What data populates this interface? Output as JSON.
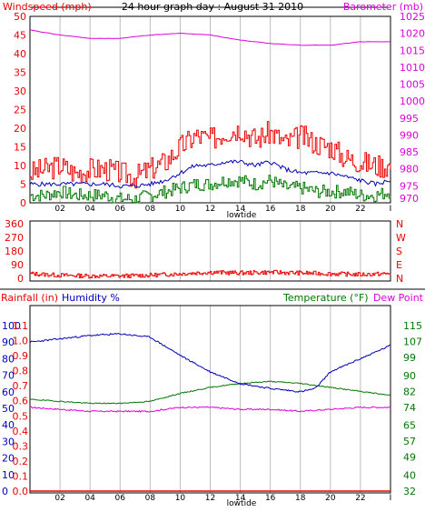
{
  "colors": {
    "wind": "#ee0000",
    "wind_avg": "#0000bb",
    "gust_low": "#007700",
    "barometer": "#dd00dd",
    "direction": "#ee0000",
    "humidity": "#0000bb",
    "temperature": "#007700",
    "dewpoint": "#dd00dd",
    "rainfall": "#ee0000",
    "grid": "#bdbdbd",
    "frame": "#000000"
  },
  "chart_data": [
    {
      "type": "line",
      "panel": "top",
      "title": "24 hour graph day : August 31 2010",
      "left_axis_label": "Windspeed (mph)",
      "right_axis_label": "Barometer (mb)",
      "left_ticks": [
        "0",
        "5",
        "10",
        "15",
        "20",
        "25",
        "30",
        "35",
        "40",
        "45",
        "50"
      ],
      "right_ticks": [
        "975",
        "980",
        "985",
        "990",
        "995",
        "1000",
        "1005",
        "1010",
        "1015",
        "1020",
        "1025"
      ],
      "right_axis_extra_tick": "970",
      "ylim_left": [
        0,
        50
      ],
      "ylim_right": [
        970,
        1025
      ],
      "x_ticks": [
        "02",
        "04",
        "06",
        "08",
        "10",
        "12",
        "14",
        "16",
        "18",
        "20",
        "22",
        "I"
      ],
      "x_label": "lowtide",
      "xlim": [
        0,
        24
      ],
      "series": [
        {
          "key": "gust",
          "x": [
            0,
            1,
            2,
            3,
            4,
            5,
            6,
            7,
            8,
            9,
            10,
            11,
            12,
            13,
            14,
            15,
            16,
            17,
            18,
            19,
            20,
            21,
            22,
            23,
            24
          ],
          "values": [
            8,
            9,
            10,
            8,
            9,
            9,
            8,
            7,
            9,
            11,
            15,
            18,
            17,
            19,
            20,
            17,
            19,
            16,
            18,
            16,
            15,
            12,
            11,
            10,
            10
          ]
        },
        {
          "key": "avg",
          "x": [
            0,
            1,
            2,
            3,
            4,
            5,
            6,
            7,
            8,
            9,
            10,
            11,
            12,
            13,
            14,
            15,
            16,
            17,
            18,
            19,
            20,
            21,
            22,
            23,
            24
          ],
          "values": [
            5,
            5,
            5,
            5,
            5,
            5,
            4.5,
            4.5,
            5,
            6,
            8,
            10,
            10,
            11,
            11,
            10,
            11,
            9,
            8,
            8,
            8,
            7,
            6,
            5,
            6
          ]
        },
        {
          "key": "low",
          "x": [
            0,
            1,
            2,
            3,
            4,
            5,
            6,
            7,
            8,
            9,
            10,
            11,
            12,
            13,
            14,
            15,
            16,
            17,
            18,
            19,
            20,
            21,
            22,
            23,
            24
          ],
          "values": [
            2,
            2,
            3,
            2,
            2,
            2,
            1,
            1,
            2,
            3,
            4,
            5,
            5,
            6,
            6,
            5,
            6,
            4,
            4,
            3,
            3,
            3,
            2,
            2,
            3
          ]
        },
        {
          "key": "barometer",
          "x": [
            0,
            2,
            4,
            6,
            8,
            10,
            12,
            14,
            16,
            18,
            20,
            22,
            24
          ],
          "values": [
            1021,
            1019.5,
            1018.5,
            1018.5,
            1019.5,
            1020,
            1019.5,
            1018,
            1017,
            1016.5,
            1016.5,
            1017.5,
            1017.5
          ]
        }
      ]
    },
    {
      "type": "line",
      "panel": "middle",
      "left_ticks": [
        "0",
        "90",
        "180",
        "270",
        "360"
      ],
      "right_labels": [
        "N",
        "W",
        "S",
        "E",
        "N"
      ],
      "ylim": [
        0,
        360
      ],
      "series": [
        {
          "key": "direction",
          "x": [
            0,
            2,
            4,
            6,
            8,
            10,
            12,
            14,
            16,
            18,
            20,
            22,
            24
          ],
          "values": [
            30,
            20,
            15,
            15,
            20,
            30,
            40,
            35,
            40,
            35,
            30,
            25,
            30
          ]
        }
      ]
    },
    {
      "type": "line",
      "panel": "bottom",
      "headers": [
        "Rainfall (in)",
        "Humidity %",
        "Temperature (°F)",
        "Dew Point"
      ],
      "humidity_ticks": [
        "0",
        "10",
        "20",
        "30",
        "40",
        "50",
        "60",
        "70",
        "80",
        "90",
        "100"
      ],
      "rain_ticks": [
        "0.0",
        "0.1",
        "0.2",
        "0.3",
        "0.4",
        "0.5",
        "0.6",
        "0.7",
        "0.8",
        "0.9",
        "1.0",
        "1.1"
      ],
      "temp_ticks": [
        "32",
        "40",
        "49",
        "57",
        "65",
        "74",
        "82",
        "90",
        "99",
        "107",
        "115"
      ],
      "ylim_humidity": [
        0,
        100
      ],
      "ylim_temp": [
        32,
        115
      ],
      "x_ticks": [
        "02",
        "04",
        "06",
        "08",
        "10",
        "12",
        "14",
        "16",
        "18",
        "20",
        "22",
        "I"
      ],
      "x_label": "lowtide",
      "series": [
        {
          "key": "humidity",
          "x": [
            0,
            2,
            4,
            6,
            8,
            10,
            12,
            14,
            16,
            18,
            19,
            20,
            22,
            24
          ],
          "values": [
            90,
            92,
            94,
            95,
            93,
            82,
            72,
            65,
            62,
            60,
            62,
            72,
            80,
            88
          ]
        },
        {
          "key": "temperature",
          "x": [
            0,
            2,
            4,
            6,
            8,
            10,
            12,
            14,
            16,
            18,
            20,
            22,
            24
          ],
          "values": [
            78,
            77,
            76,
            76,
            77,
            81,
            84,
            86,
            87,
            86,
            84,
            82,
            80
          ]
        },
        {
          "key": "dewpoint",
          "x": [
            0,
            2,
            4,
            6,
            8,
            10,
            12,
            14,
            16,
            18,
            20,
            22,
            24
          ],
          "values": [
            74,
            73,
            72,
            72,
            72,
            74,
            74,
            73,
            73,
            72,
            73,
            74,
            74
          ]
        },
        {
          "key": "rainfall",
          "x": [
            0,
            24
          ],
          "values": [
            0,
            0
          ]
        }
      ]
    }
  ]
}
